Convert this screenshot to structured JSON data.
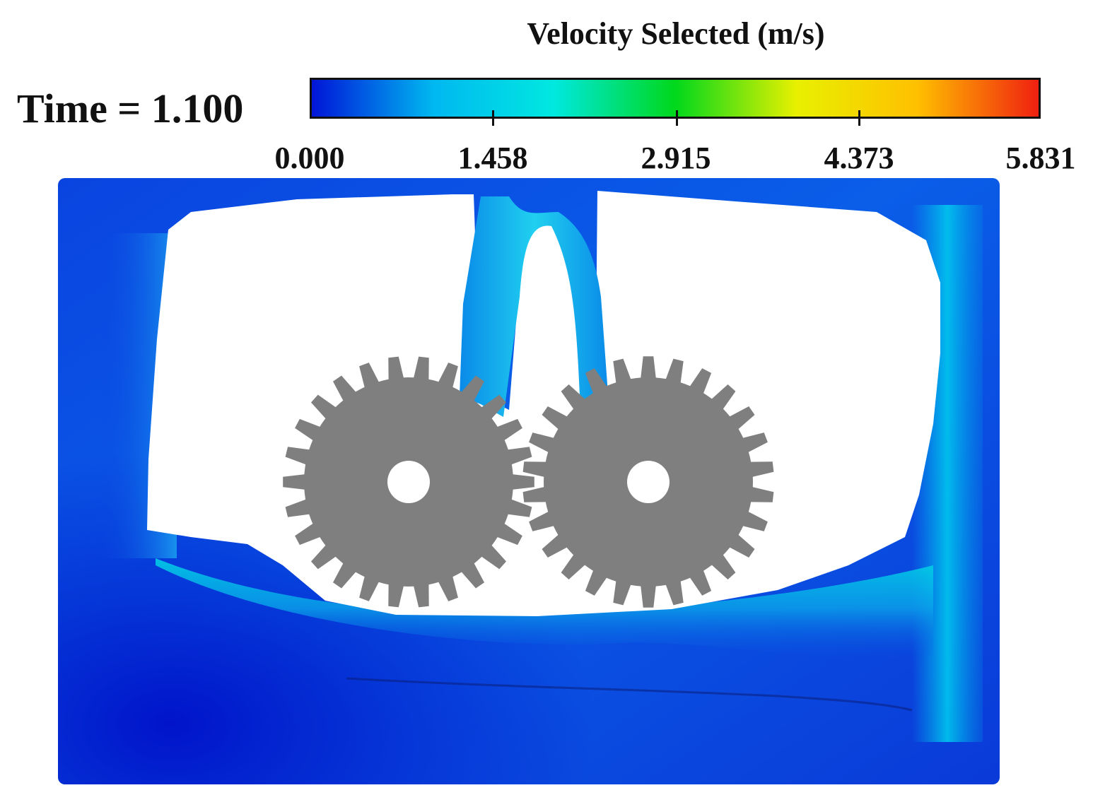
{
  "legend": {
    "title": "Velocity Selected (m/s)",
    "ticks": [
      "0.000",
      "1.458",
      "2.915",
      "4.373",
      "5.831"
    ],
    "colors": [
      "#0015d8",
      "#00b8f0",
      "#00e8e0",
      "#00d81c",
      "#e8f000",
      "#ffc000",
      "#f02010"
    ]
  },
  "time": {
    "label": "Time = 1.100"
  },
  "scene": {
    "gear_left_teeth": 26,
    "gear_right_teeth": 26,
    "gear_color": "#7f7f7f",
    "fluid_colors": {
      "slow": "#0018d8",
      "mid": "#0096ec",
      "fast": "#00e0e8"
    }
  }
}
